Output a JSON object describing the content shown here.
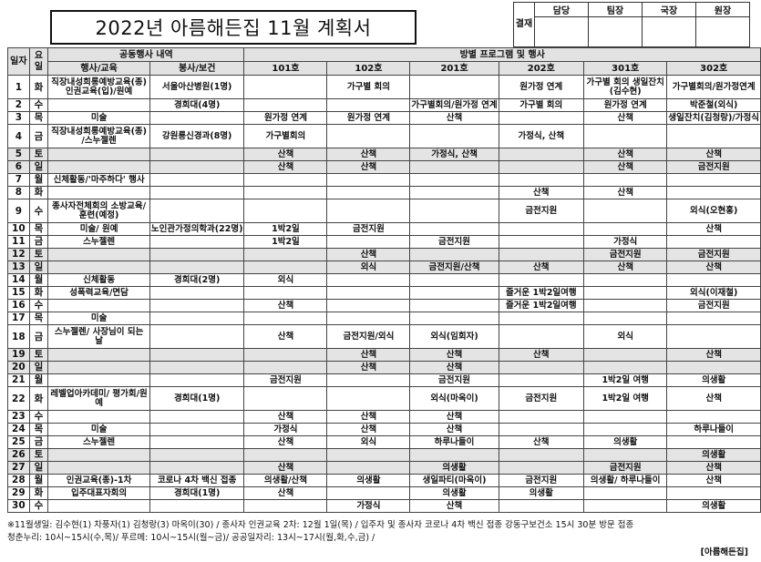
{
  "title": "2022년 아름해든집 11월 계획서",
  "approval": {
    "label": "결재",
    "roles": [
      "담당",
      "팀장",
      "국장",
      "원장"
    ]
  },
  "header": {
    "date": "일자",
    "weekday": "요일",
    "common_group": "공동행사 내역",
    "room_group": "방별 프로그램 및 행사",
    "columns": [
      "행사/교육",
      "봉사/보건",
      "101호",
      "102호",
      "201호",
      "202호",
      "301호",
      "302호"
    ]
  },
  "rows": [
    {
      "d": "1",
      "w": "화",
      "c": [
        "직장내성희롱예방교육(종) 인권교육(입)/원예",
        "서울아산병원(1명)",
        "",
        "가구별 회의",
        "",
        "원가정 연계",
        "가구별 회의 생일잔치(김수현)",
        "가구별회의/원가정연계"
      ]
    },
    {
      "d": "2",
      "w": "수",
      "c": [
        "",
        "경희대(4명)",
        "",
        "",
        "가구별회의/원가정 연계",
        "가구별 회의",
        "원가정 연계",
        "박준철(외식)"
      ]
    },
    {
      "d": "3",
      "w": "목",
      "c": [
        "미술",
        "",
        "원가정 연계",
        "원가정 연계",
        "산책",
        "",
        "산책",
        "생일잔치(김청랑)/가정식"
      ]
    },
    {
      "d": "4",
      "w": "금",
      "c": [
        "직장내성희롱예방교육(종) /스누젤렌",
        "강원룡신경과(8명)",
        "가구별회의",
        "",
        "",
        "가정식, 산책",
        "",
        ""
      ]
    },
    {
      "d": "5",
      "w": "토",
      "c": [
        "",
        "",
        "산책",
        "산책",
        "가정식, 산책",
        "",
        "산책",
        "산책"
      ]
    },
    {
      "d": "6",
      "w": "일",
      "c": [
        "",
        "",
        "산책",
        "산책",
        "",
        "",
        "산책",
        "금전지원"
      ]
    },
    {
      "d": "7",
      "w": "월",
      "c": [
        "신체활동/'마주하다' 행사",
        "",
        "",
        "",
        "",
        "",
        "",
        ""
      ]
    },
    {
      "d": "8",
      "w": "화",
      "c": [
        "",
        "",
        "",
        "",
        "",
        "산책",
        "산책",
        ""
      ]
    },
    {
      "d": "9",
      "w": "수",
      "c": [
        "종사자전체회의 소방교육/훈련(예정)",
        "",
        "",
        "",
        "",
        "금전지원",
        "",
        "외식(오현홍)"
      ]
    },
    {
      "d": "10",
      "w": "목",
      "c": [
        "미술/ 원예",
        "노인관가정의학과(22명)",
        "1박2일",
        "금전지원",
        "",
        "",
        "",
        "산책"
      ]
    },
    {
      "d": "11",
      "w": "금",
      "c": [
        "스누젤렌",
        "",
        "1박2일",
        "",
        "금전지원",
        "",
        "가정식",
        ""
      ]
    },
    {
      "d": "12",
      "w": "토",
      "c": [
        "",
        "",
        "",
        "산책",
        "",
        "",
        "금전지원",
        "금전지원"
      ]
    },
    {
      "d": "13",
      "w": "일",
      "c": [
        "",
        "",
        "",
        "외식",
        "금전지원/산책",
        "산책",
        "산책",
        "산책"
      ]
    },
    {
      "d": "14",
      "w": "월",
      "c": [
        "신체활동",
        "경희대(2명)",
        "외식",
        "",
        "",
        "",
        "",
        ""
      ]
    },
    {
      "d": "15",
      "w": "화",
      "c": [
        "성폭력교육/면담",
        "",
        "",
        "",
        "",
        "즐거운 1박2일여행",
        "",
        "외식(이재철)"
      ]
    },
    {
      "d": "16",
      "w": "수",
      "c": [
        "",
        "",
        "산책",
        "",
        "",
        "즐거운 1박2일여행",
        "",
        "금전지원"
      ]
    },
    {
      "d": "17",
      "w": "목",
      "c": [
        "미술",
        "",
        "",
        "",
        "",
        "",
        "",
        ""
      ]
    },
    {
      "d": "18",
      "w": "금",
      "c": [
        "스누젤렌/ 사장님이 되는 날",
        "",
        "산책",
        "금전지원/외식",
        "외식(임회자)",
        "",
        "외식",
        ""
      ]
    },
    {
      "d": "19",
      "w": "토",
      "c": [
        "",
        "",
        "",
        "산책",
        "산책",
        "산책",
        "",
        "산책"
      ]
    },
    {
      "d": "20",
      "w": "일",
      "c": [
        "",
        "",
        "",
        "산책",
        "산책",
        "",
        "",
        ""
      ]
    },
    {
      "d": "21",
      "w": "월",
      "c": [
        "",
        "",
        "금전지원",
        "",
        "금전지원",
        "",
        "1박2일 여행",
        "의생활"
      ]
    },
    {
      "d": "22",
      "w": "화",
      "c": [
        "레벨업아카데미/ 평가회/원예",
        "경희대(1명)",
        "",
        "",
        "외식(마옥이)",
        "금전지원",
        "1박2일 여행",
        "산책"
      ]
    },
    {
      "d": "23",
      "w": "수",
      "c": [
        "",
        "",
        "산책",
        "산책",
        "산책",
        "",
        "",
        ""
      ]
    },
    {
      "d": "24",
      "w": "목",
      "c": [
        "미술",
        "",
        "가정식",
        "산책",
        "산책",
        "",
        "",
        "하루나들이"
      ]
    },
    {
      "d": "25",
      "w": "금",
      "c": [
        "스누젤렌",
        "",
        "산책",
        "외식",
        "하루나들이",
        "산책",
        "의생활",
        ""
      ]
    },
    {
      "d": "26",
      "w": "토",
      "c": [
        "",
        "",
        "",
        "",
        "",
        "",
        "",
        "의생활"
      ]
    },
    {
      "d": "27",
      "w": "일",
      "c": [
        "",
        "",
        "산책",
        "",
        "의생활",
        "",
        "금전지원",
        "산책"
      ]
    },
    {
      "d": "28",
      "w": "월",
      "c": [
        "인권교육(종)-1차",
        "코로나 4차 백신 접종",
        "의생활/산책",
        "의생활",
        "생일파티(마옥이)",
        "금전지원",
        "의생활/ 하루나들이",
        "산책"
      ]
    },
    {
      "d": "29",
      "w": "화",
      "c": [
        "입주대표자회의",
        "경희대(1명)",
        "산책",
        "",
        "의생활",
        "의생활",
        "",
        ""
      ]
    },
    {
      "d": "30",
      "w": "수",
      "c": [
        "",
        "",
        "",
        "가정식",
        "산책",
        "",
        "",
        "의생활"
      ]
    }
  ],
  "tall_rows": [
    "1",
    "4",
    "9",
    "18",
    "22"
  ],
  "weekend_rows": [
    "5",
    "6",
    "12",
    "13",
    "19",
    "20",
    "26",
    "27"
  ],
  "notes": [
    "※11월생일: 김수현(1) 차풍자(1) 김청랑(3) 마옥이(30) / 종사자 인권교육 2차: 12월 1일(목) / 입주자 및 종사자 코로나 4차 백신 접종 강동구보건소 15시 30분 방문 접종",
    "청춘누리: 10시~15시(수,목)/ 푸르메: 10시~15시(월~금)/ 공공일자리: 13시~17시(월,화,수,금) /"
  ],
  "organization": "[아름해든집]"
}
